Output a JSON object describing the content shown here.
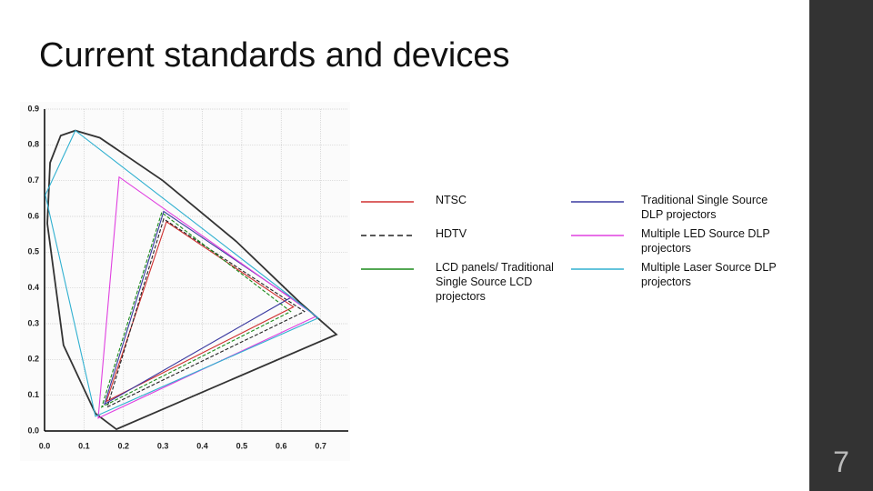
{
  "header": {
    "title": "Current standards and devices"
  },
  "footer": {
    "slide_number": "7"
  },
  "chart_data": {
    "type": "polygon",
    "xlim": [
      0,
      0.77
    ],
    "ylim": [
      0,
      0.9
    ],
    "xticks": [
      {
        "value": 0,
        "label": "0.0"
      },
      0.1,
      0.2,
      0.3,
      0.4,
      0.5,
      0.6,
      0.7
    ],
    "yticks": [
      {
        "value": 0,
        "label": "0.0"
      },
      0.1,
      0.2,
      0.3,
      0.4,
      0.5,
      0.6,
      0.7,
      0.8,
      0.9
    ],
    "grid": true,
    "series": [
      {
        "color": "#333333",
        "x": [
          0.182,
          0.129,
          0.048,
          0.007,
          0.014,
          0.041,
          0.078,
          0.14,
          0.3,
          0.486,
          0.647,
          0.74
        ],
        "values": [
          0.005,
          0.049,
          0.24,
          0.58,
          0.75,
          0.826,
          0.84,
          0.82,
          0.7,
          0.53,
          0.36,
          0.27
        ]
      },
      {
        "name": "NTSC",
        "color": "#d03030",
        "x": [
          0.309,
          0.157,
          0.631
        ],
        "values": [
          0.585,
          0.083,
          0.347
        ]
      },
      {
        "name": "HDTV",
        "color": "#222222",
        "dashed": true,
        "x": [
          0.302,
          0.159,
          0.659
        ],
        "values": [
          0.593,
          0.067,
          0.334
        ]
      },
      {
        "name": "LCD panels/ Traditional Single Source LCD projectors",
        "color": "#1a8a1a",
        "dashed": true,
        "x": [
          0.297,
          0.145,
          0.624
        ],
        "values": [
          0.611,
          0.067,
          0.334
        ]
      },
      {
        "name": "Traditional Single Source DLP projectors",
        "color": "#3a3aa0",
        "x": [
          0.302,
          0.152,
          0.624
        ],
        "values": [
          0.614,
          0.075,
          0.373
        ]
      },
      {
        "name": "Multiple LED Source DLP projectors",
        "color": "#e040e0",
        "x": [
          0.189,
          0.136,
          0.689
        ],
        "values": [
          0.71,
          0.036,
          0.321
        ]
      },
      {
        "name": "Multiple Laser Source DLP projectors",
        "color": "#30b0d0",
        "x": [
          0.078,
          0.002,
          0.129,
          0.694
        ],
        "values": [
          0.84,
          0.66,
          0.041,
          0.316
        ]
      }
    ]
  }
}
